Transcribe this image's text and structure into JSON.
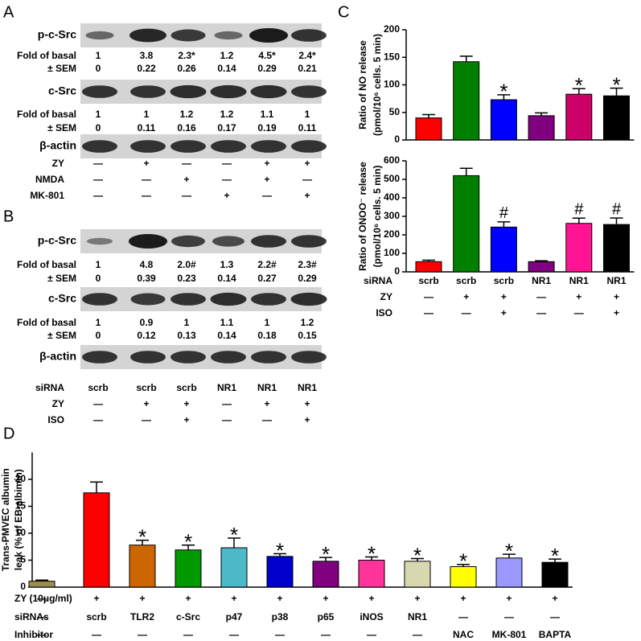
{
  "panels": {
    "A": {
      "label": "A",
      "blots": [
        "p-c-Src",
        "c-Src",
        "β-actin"
      ],
      "quant": [
        {
          "fold_label": "Fold of basal",
          "fold": [
            "1",
            "3.8",
            "2.3*",
            "1.2",
            "4.5*",
            "2.4*"
          ],
          "sem_label": "± SEM",
          "sem": [
            "0",
            "0.22",
            "0.26",
            "0.14",
            "0.29",
            "0.21"
          ]
        },
        {
          "fold_label": "Fold of basal",
          "fold": [
            "1",
            "1",
            "1.2",
            "1.2",
            "1.1",
            "1"
          ],
          "sem_label": "± SEM",
          "sem": [
            "0",
            "0.11",
            "0.16",
            "0.17",
            "0.19",
            "0.11"
          ]
        }
      ],
      "treatments": [
        {
          "name": "ZY",
          "marks": [
            "—",
            "+",
            "—",
            "—",
            "+",
            "+"
          ]
        },
        {
          "name": "NMDA",
          "marks": [
            "—",
            "—",
            "+",
            "—",
            "+",
            "—"
          ]
        },
        {
          "name": "MK-801",
          "marks": [
            "—",
            "—",
            "—",
            "+",
            "—",
            "+"
          ]
        }
      ]
    },
    "B": {
      "label": "B",
      "blots": [
        "p-c-Src",
        "c-Src",
        "β-actin"
      ],
      "quant": [
        {
          "fold_label": "Fold of basal",
          "fold": [
            "1",
            "4.8",
            "2.0#",
            "1.3",
            "2.2#",
            "2.3#"
          ],
          "sem_label": "± SEM",
          "sem": [
            "0",
            "0.39",
            "0.23",
            "0.14",
            "0.27",
            "0.29"
          ]
        },
        {
          "fold_label": "Fold of basal",
          "fold": [
            "1",
            "0.9",
            "1",
            "1.1",
            "1",
            "1.2"
          ],
          "sem_label": "± SEM",
          "sem": [
            "0",
            "0.12",
            "0.13",
            "0.14",
            "0.18",
            "0.15"
          ]
        }
      ],
      "treatments": [
        {
          "name": "siRNA",
          "marks": [
            "scrb",
            "scrb",
            "scrb",
            "NR1",
            "NR1",
            "NR1"
          ]
        },
        {
          "name": "ZY",
          "marks": [
            "—",
            "+",
            "+",
            "—",
            "+",
            "+"
          ]
        },
        {
          "name": "ISO",
          "marks": [
            "—",
            "—",
            "+",
            "—",
            "—",
            "+"
          ]
        }
      ]
    },
    "C": {
      "label": "C",
      "treatments": [
        {
          "name": "siRNA",
          "marks": [
            "scrb",
            "scrb",
            "scrb",
            "NR1",
            "NR1",
            "NR1"
          ]
        },
        {
          "name": "ZY",
          "marks": [
            "—",
            "+",
            "+",
            "—",
            "+",
            "+"
          ]
        },
        {
          "name": "ISO",
          "marks": [
            "—",
            "—",
            "+",
            "—",
            "—",
            "+"
          ]
        }
      ]
    },
    "D": {
      "label": "D",
      "treatments": [
        {
          "name": "ZY (10μg/ml)",
          "marks": [
            "—",
            "+",
            "+",
            "+",
            "+",
            "+",
            "+",
            "+",
            "+",
            "+",
            "+",
            "+"
          ]
        },
        {
          "name": "siRNAs",
          "marks": [
            "—",
            "scrb",
            "TLR2",
            "c-Src",
            "p47",
            "p38",
            "p65",
            "iNOS",
            "NR1",
            "—",
            "—",
            "—"
          ]
        },
        {
          "name": "Inhibitor",
          "marks": [
            "—",
            "—",
            "—",
            "—",
            "—",
            "—",
            "—",
            "—",
            "—",
            "NAC",
            "MK-801",
            "BAPTA"
          ]
        }
      ]
    }
  },
  "chart_data": [
    {
      "type": "bar",
      "ylabel": [
        "Ratio of NO release",
        "(pmol/10⁶ cells. 5 min)"
      ],
      "values": [
        40,
        142,
        73,
        44,
        83,
        80
      ],
      "errors": [
        6,
        10,
        9,
        5,
        10,
        14
      ],
      "colors": [
        "#ff0000",
        "#008000",
        "#0000ff",
        "#800080",
        "#cc0066",
        "#000000"
      ],
      "annotations": [
        null,
        null,
        "*",
        null,
        "*",
        "*"
      ],
      "ylim": [
        0,
        200
      ],
      "yticks": [
        0,
        50,
        100,
        150,
        200
      ]
    },
    {
      "type": "bar",
      "ylabel": [
        "Ratio of ONOO⁻ release",
        "(pmol/10⁶ cells. 5 min)"
      ],
      "values": [
        55,
        520,
        242,
        55,
        262,
        256
      ],
      "errors": [
        8,
        40,
        28,
        5,
        28,
        35
      ],
      "colors": [
        "#ff0000",
        "#008000",
        "#0000ff",
        "#800080",
        "#ff1493",
        "#000000"
      ],
      "annotations": [
        null,
        null,
        "#",
        null,
        "#",
        "#"
      ],
      "ylim": [
        0,
        600
      ],
      "yticks": [
        0,
        100,
        200,
        300,
        400,
        500,
        600
      ]
    },
    {
      "type": "bar",
      "ylabel": [
        "Trans-PMVEC albumin",
        "leak (% of EB-albimin)"
      ],
      "values": [
        1.1,
        17.5,
        7.8,
        6.9,
        7.3,
        5.7,
        4.8,
        5.0,
        4.8,
        3.8,
        5.4,
        4.6
      ],
      "errors": [
        0.2,
        2.0,
        0.9,
        0.9,
        1.8,
        0.5,
        0.7,
        0.6,
        0.5,
        0.4,
        0.7,
        0.6
      ],
      "colors": [
        "#a08c50",
        "#ff0000",
        "#cc6600",
        "#009900",
        "#4db8c8",
        "#0000cc",
        "#800080",
        "#ff3399",
        "#d8d8b0",
        "#ffff00",
        "#9999ff",
        "#000000"
      ],
      "annotations": [
        null,
        null,
        "*",
        "*",
        "*",
        "*",
        "*",
        "*",
        "*",
        "*",
        "*",
        "*"
      ],
      "ylim": [
        0,
        25
      ],
      "yticks": [
        0,
        5,
        10,
        15,
        20
      ]
    }
  ]
}
